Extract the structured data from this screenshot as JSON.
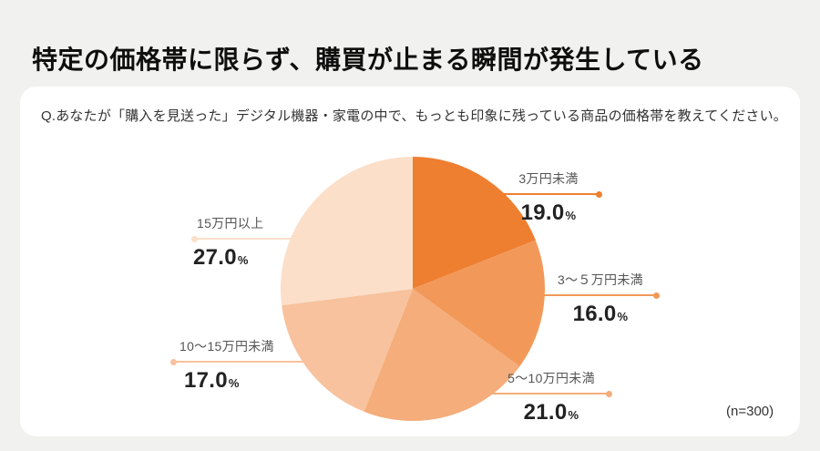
{
  "page": {
    "title": "特定の価格帯に限らず、購買が止まる瞬間が発生している",
    "question": "Q.あなたが「購入を見送った」デジタル機器・家電の中で、もっとも印象に残っている商品の価格帯を教えてください。",
    "sample_size_note": "(n=300)"
  },
  "colors": {
    "background": "#f1f1ef",
    "card": "#ffffff",
    "title_text": "#0f0f0f",
    "label_text": "#555555",
    "value_text": "#222222"
  },
  "chart_data": {
    "type": "pie",
    "title": "",
    "start_angle_deg": 0,
    "direction": "clockwise",
    "sample_size": 300,
    "slices": [
      {
        "label": "3万円未満",
        "value": 19.0,
        "value_display": "19.0",
        "unit": "%",
        "color": "#ee7f30"
      },
      {
        "label": "3〜５万円未満",
        "value": 16.0,
        "value_display": "16.0",
        "unit": "%",
        "color": "#f2995a"
      },
      {
        "label": "5〜10万円未満",
        "value": 21.0,
        "value_display": "21.0",
        "unit": "%",
        "color": "#f4ad7b"
      },
      {
        "label": "10〜15万円未満",
        "value": 17.0,
        "value_display": "17.0",
        "unit": "%",
        "color": "#f7c29d"
      },
      {
        "label": "15万円以上",
        "value": 27.0,
        "value_display": "27.0",
        "unit": "%",
        "color": "#fbdfc9"
      }
    ]
  }
}
